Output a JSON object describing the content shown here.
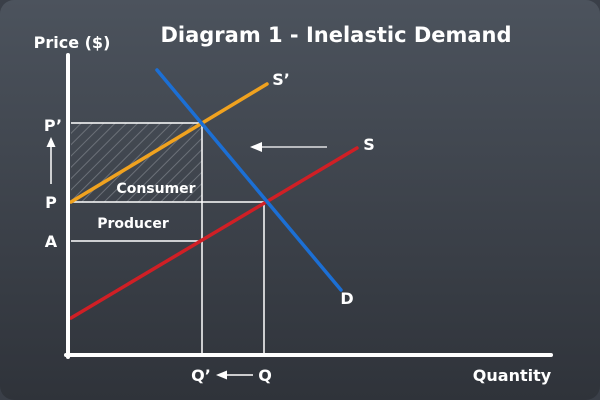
{
  "title": "Diagram 1 - Inelastic Demand",
  "axes": {
    "y_label": "Price ($)",
    "x_label": "Quantity"
  },
  "price_labels": {
    "p_prime": "P’",
    "p": "P",
    "a": "A"
  },
  "quantity_labels": {
    "q_prime": "Q’",
    "q": "Q"
  },
  "curve_labels": {
    "supply_new": "S’",
    "supply": "S",
    "demand": "D"
  },
  "areas": {
    "consumer": "Consumer",
    "producer": "Producer"
  },
  "colors": {
    "background_top": "#4c535d",
    "background_bottom": "#2f333a",
    "axis": "#ffffff",
    "demand": "#1c6fd4",
    "supply": "#d01f25",
    "supply_new": "#f0a21f",
    "guide": "#ffffff",
    "hatch": "#6b7078"
  },
  "arrows": {
    "supply_shift": "left",
    "price_change": "up",
    "quantity_change": "left"
  }
}
